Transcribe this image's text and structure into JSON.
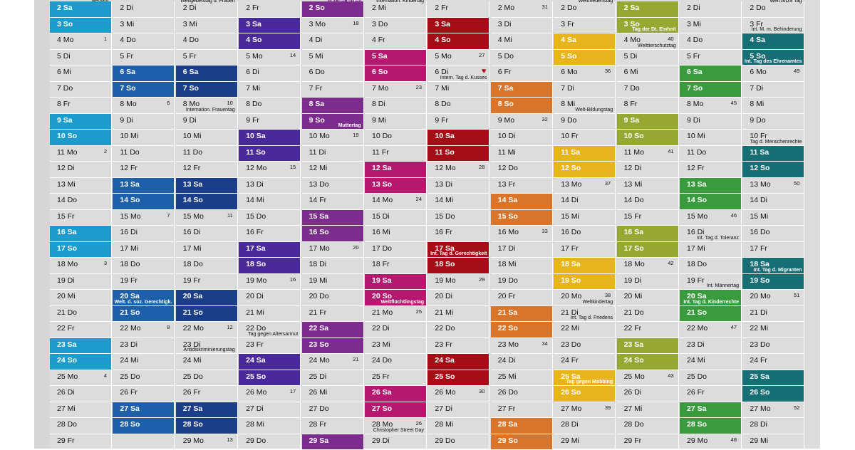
{
  "months": [
    {
      "key": "jan",
      "color": "#1b9ccc",
      "top_note": "Neujahr",
      "cells": [
        {
          "t": "2 Sa",
          "w": true
        },
        {
          "t": "3 So",
          "w": true
        },
        {
          "t": "4 Mo",
          "k": "1"
        },
        {
          "t": "5 Di"
        },
        {
          "t": "6 Mi"
        },
        {
          "t": "7 Do"
        },
        {
          "t": "8 Fr"
        },
        {
          "t": "9 Sa",
          "w": true
        },
        {
          "t": "10 So",
          "w": true
        },
        {
          "t": "11 Mo",
          "k": "2"
        },
        {
          "t": "12 Di"
        },
        {
          "t": "13 Mi"
        },
        {
          "t": "14 Do"
        },
        {
          "t": "15 Fr"
        },
        {
          "t": "16 Sa",
          "w": true
        },
        {
          "t": "17 So",
          "w": true
        },
        {
          "t": "18 Mo",
          "k": "3"
        },
        {
          "t": "19 Di"
        },
        {
          "t": "20 Mi"
        },
        {
          "t": "21 Do"
        },
        {
          "t": "22 Fr"
        },
        {
          "t": "23 Sa",
          "w": true
        },
        {
          "t": "24 So",
          "w": true
        },
        {
          "t": "25 Mo",
          "k": "4"
        },
        {
          "t": "26 Di"
        },
        {
          "t": "27 Mi"
        },
        {
          "t": "28 Do"
        },
        {
          "t": "29 Fr"
        }
      ]
    },
    {
      "key": "feb",
      "color": "#1d5fa8",
      "top_note": "",
      "cells": [
        {
          "t": "2 Di"
        },
        {
          "t": "3 Mi"
        },
        {
          "t": "4 Do"
        },
        {
          "t": "5 Fr"
        },
        {
          "t": "6 Sa",
          "w": true
        },
        {
          "t": "7 So",
          "w": true
        },
        {
          "t": "8 Mo",
          "k": "6"
        },
        {
          "t": "9 Di"
        },
        {
          "t": "10 Mi"
        },
        {
          "t": "11 Do"
        },
        {
          "t": "12 Fr"
        },
        {
          "t": "13 Sa",
          "w": true
        },
        {
          "t": "14 So",
          "w": true
        },
        {
          "t": "15 Mo",
          "k": "7"
        },
        {
          "t": "16 Di"
        },
        {
          "t": "17 Mi"
        },
        {
          "t": "18 Do"
        },
        {
          "t": "19 Fr"
        },
        {
          "t": "20 Sa",
          "w": true,
          "n": "Welt. d. soz. Gerechtigk."
        },
        {
          "t": "21 So",
          "w": true
        },
        {
          "t": "22 Mo",
          "k": "8"
        },
        {
          "t": "23 Di"
        },
        {
          "t": "24 Mi"
        },
        {
          "t": "25 Do"
        },
        {
          "t": "26 Fr"
        },
        {
          "t": "27 Sa",
          "w": true
        },
        {
          "t": "28 So",
          "w": true
        },
        {
          "t": ""
        }
      ]
    },
    {
      "key": "mar",
      "color": "#1a3e8a",
      "top_note": "Weltgebetstag d. Frauen",
      "cells": [
        {
          "t": "2 Di"
        },
        {
          "t": "3 Mi"
        },
        {
          "t": "4 Do"
        },
        {
          "t": "5 Fr"
        },
        {
          "t": "6 Sa",
          "w": true
        },
        {
          "t": "7 So",
          "w": true
        },
        {
          "t": "8 Mo",
          "k": "10",
          "n": "Internation. Frauentag"
        },
        {
          "t": "9 Di"
        },
        {
          "t": "10 Mi"
        },
        {
          "t": "11 Do"
        },
        {
          "t": "12 Fr"
        },
        {
          "t": "13 Sa",
          "w": true
        },
        {
          "t": "14 So",
          "w": true
        },
        {
          "t": "15 Mo",
          "k": "11"
        },
        {
          "t": "16 Di"
        },
        {
          "t": "17 Mi"
        },
        {
          "t": "18 Do"
        },
        {
          "t": "19 Fr"
        },
        {
          "t": "20 Sa",
          "w": true
        },
        {
          "t": "21 So",
          "w": true
        },
        {
          "t": "22 Mo",
          "k": "12"
        },
        {
          "t": "23 Di",
          "n": "Antidiskriminierungstag"
        },
        {
          "t": "24 Mi"
        },
        {
          "t": "25 Do"
        },
        {
          "t": "26 Fr"
        },
        {
          "t": "27 Sa",
          "w": true
        },
        {
          "t": "28 So",
          "w": true
        },
        {
          "t": "29 Mo",
          "k": "13"
        }
      ]
    },
    {
      "key": "apr",
      "color": "#4a2a9a",
      "top_note": "",
      "cells": [
        {
          "t": "2 Fr"
        },
        {
          "t": "3 Sa",
          "w": true
        },
        {
          "t": "4 So",
          "w": true
        },
        {
          "t": "5 Mo",
          "k": "14"
        },
        {
          "t": "6 Di"
        },
        {
          "t": "7 Mi"
        },
        {
          "t": "8 Do"
        },
        {
          "t": "9 Fr"
        },
        {
          "t": "10 Sa",
          "w": true
        },
        {
          "t": "11 So",
          "w": true
        },
        {
          "t": "12 Mo",
          "k": "15"
        },
        {
          "t": "13 Di"
        },
        {
          "t": "14 Mi"
        },
        {
          "t": "15 Do"
        },
        {
          "t": "16 Fr"
        },
        {
          "t": "17 Sa",
          "w": true
        },
        {
          "t": "18 So",
          "w": true
        },
        {
          "t": "19 Mo",
          "k": "16"
        },
        {
          "t": "20 Di"
        },
        {
          "t": "21 Mi"
        },
        {
          "t": "22 Do",
          "n": "Tag gegen Altersarmut"
        },
        {
          "t": "23 Fr"
        },
        {
          "t": "24 Sa",
          "w": true
        },
        {
          "t": "25 So",
          "w": true
        },
        {
          "t": "26 Mo",
          "k": "17"
        },
        {
          "t": "27 Di"
        },
        {
          "t": "28 Mi"
        },
        {
          "t": "29 Do"
        }
      ]
    },
    {
      "key": "may",
      "color": "#7b2c8c",
      "top_note": "Tag der Arbeit",
      "cells": [
        {
          "t": "2 So",
          "w": true
        },
        {
          "t": "3 Mo",
          "k": "18"
        },
        {
          "t": "4 Di"
        },
        {
          "t": "5 Mi"
        },
        {
          "t": "6 Do"
        },
        {
          "t": "7 Fr"
        },
        {
          "t": "8 Sa",
          "w": true
        },
        {
          "t": "9 So",
          "w": true,
          "n": "Muttertag"
        },
        {
          "t": "10 Mo",
          "k": "19"
        },
        {
          "t": "11 Di"
        },
        {
          "t": "12 Mi"
        },
        {
          "t": "13 Do"
        },
        {
          "t": "14 Fr"
        },
        {
          "t": "15 Sa",
          "w": true
        },
        {
          "t": "16 So",
          "w": true
        },
        {
          "t": "17 Mo",
          "k": "20"
        },
        {
          "t": "18 Di"
        },
        {
          "t": "19 Mi"
        },
        {
          "t": "20 Do"
        },
        {
          "t": "21 Fr"
        },
        {
          "t": "22 Sa",
          "w": true
        },
        {
          "t": "23 So",
          "w": true
        },
        {
          "t": "24 Mo",
          "k": "21"
        },
        {
          "t": "25 Di"
        },
        {
          "t": "26 Mi"
        },
        {
          "t": "27 Do"
        },
        {
          "t": "28 Fr"
        },
        {
          "t": "29 Sa",
          "w": true
        }
      ]
    },
    {
      "key": "jun",
      "color": "#b5186e",
      "top_note": "Internation. Kindertag",
      "cells": [
        {
          "t": "2 Mi"
        },
        {
          "t": "3 Do"
        },
        {
          "t": "4 Fr"
        },
        {
          "t": "5 Sa",
          "w": true
        },
        {
          "t": "6 So",
          "w": true
        },
        {
          "t": "7 Mo",
          "k": "23"
        },
        {
          "t": "8 Di"
        },
        {
          "t": "9 Mi"
        },
        {
          "t": "10 Do"
        },
        {
          "t": "11 Fr"
        },
        {
          "t": "12 Sa",
          "w": true
        },
        {
          "t": "13 So",
          "w": true
        },
        {
          "t": "14 Mo",
          "k": "24"
        },
        {
          "t": "15 Di"
        },
        {
          "t": "16 Mi"
        },
        {
          "t": "17 Do"
        },
        {
          "t": "18 Fr"
        },
        {
          "t": "19 Sa",
          "w": true
        },
        {
          "t": "20 So",
          "w": true,
          "n": "Weltflüchtlingstag"
        },
        {
          "t": "21 Mo",
          "k": "25"
        },
        {
          "t": "22 Di"
        },
        {
          "t": "23 Mi"
        },
        {
          "t": "24 Do"
        },
        {
          "t": "25 Fr"
        },
        {
          "t": "26 Sa",
          "w": true
        },
        {
          "t": "27 So",
          "w": true
        },
        {
          "t": "28 Mo",
          "k": "26",
          "n": "Christopher Street Day"
        },
        {
          "t": "29 Di"
        }
      ]
    },
    {
      "key": "jul",
      "color": "#a50d16",
      "top_note": "",
      "cells": [
        {
          "t": "2 Fr"
        },
        {
          "t": "3 Sa",
          "w": true
        },
        {
          "t": "4 So",
          "w": true
        },
        {
          "t": "5 Mo",
          "k": "27"
        },
        {
          "t": "6 Di",
          "h": true,
          "n": "Intern. Tag d. Kusses"
        },
        {
          "t": "7 Mi"
        },
        {
          "t": "8 Do"
        },
        {
          "t": "9 Fr"
        },
        {
          "t": "10 Sa",
          "w": true
        },
        {
          "t": "11 So",
          "w": true
        },
        {
          "t": "12 Mo",
          "k": "28"
        },
        {
          "t": "13 Di"
        },
        {
          "t": "14 Mi"
        },
        {
          "t": "15 Do"
        },
        {
          "t": "16 Fr"
        },
        {
          "t": "17 Sa",
          "w": true,
          "n": "Int. Tag d. Gerechtigkeit"
        },
        {
          "t": "18 So",
          "w": true
        },
        {
          "t": "19 Mo",
          "k": "29"
        },
        {
          "t": "20 Di"
        },
        {
          "t": "21 Mi"
        },
        {
          "t": "22 Do"
        },
        {
          "t": "23 Fr"
        },
        {
          "t": "24 Sa",
          "w": true
        },
        {
          "t": "25 So",
          "w": true
        },
        {
          "t": "26 Mo",
          "k": "30"
        },
        {
          "t": "27 Di"
        },
        {
          "t": "28 Mi"
        },
        {
          "t": "29 Do"
        }
      ]
    },
    {
      "key": "aug",
      "color": "#d9752a",
      "top_note": "",
      "cells": [
        {
          "t": "2 Mo",
          "k": "31"
        },
        {
          "t": "3 Di"
        },
        {
          "t": "4 Mi"
        },
        {
          "t": "5 Do"
        },
        {
          "t": "6 Fr"
        },
        {
          "t": "7 Sa",
          "w": true
        },
        {
          "t": "8 So",
          "w": true
        },
        {
          "t": "9 Mo",
          "k": "32"
        },
        {
          "t": "10 Di"
        },
        {
          "t": "11 Mi"
        },
        {
          "t": "12 Do"
        },
        {
          "t": "13 Fr"
        },
        {
          "t": "14 Sa",
          "w": true
        },
        {
          "t": "15 So",
          "w": true
        },
        {
          "t": "16 Mo",
          "k": "33"
        },
        {
          "t": "17 Di"
        },
        {
          "t": "18 Mi"
        },
        {
          "t": "19 Do"
        },
        {
          "t": "20 Fr"
        },
        {
          "t": "21 Sa",
          "w": true
        },
        {
          "t": "22 So",
          "w": true
        },
        {
          "t": "23 Mo",
          "k": "34"
        },
        {
          "t": "24 Di"
        },
        {
          "t": "25 Mi"
        },
        {
          "t": "26 Do"
        },
        {
          "t": "27 Fr"
        },
        {
          "t": "28 Sa",
          "w": true
        },
        {
          "t": "29 So",
          "w": true
        }
      ]
    },
    {
      "key": "sep",
      "color": "#e8b41c",
      "top_note": "Weltfriedenstag",
      "cells": [
        {
          "t": "2 Do"
        },
        {
          "t": "3 Fr"
        },
        {
          "t": "4 Sa",
          "w": true
        },
        {
          "t": "5 So",
          "w": true
        },
        {
          "t": "6 Mo",
          "k": "36"
        },
        {
          "t": "7 Di"
        },
        {
          "t": "8 Mi",
          "n": "Welt-Bildungstag"
        },
        {
          "t": "9 Do"
        },
        {
          "t": "10 Fr"
        },
        {
          "t": "11 Sa",
          "w": true
        },
        {
          "t": "12 So",
          "w": true
        },
        {
          "t": "13 Mo",
          "k": "37"
        },
        {
          "t": "14 Di"
        },
        {
          "t": "15 Mi"
        },
        {
          "t": "16 Do"
        },
        {
          "t": "17 Fr"
        },
        {
          "t": "18 Sa",
          "w": true
        },
        {
          "t": "19 So",
          "w": true
        },
        {
          "t": "20 Mo",
          "k": "38",
          "n": "Weltkindertag"
        },
        {
          "t": "21 Di",
          "n": "Int. Tag d. Friedens"
        },
        {
          "t": "22 Mi"
        },
        {
          "t": "23 Do"
        },
        {
          "t": "24 Fr"
        },
        {
          "t": "25 Sa",
          "w": true,
          "n": "Tag gegen Mobbing"
        },
        {
          "t": "26 So",
          "w": true
        },
        {
          "t": "27 Mo",
          "k": "39"
        },
        {
          "t": "28 Di"
        },
        {
          "t": "29 Mi"
        }
      ]
    },
    {
      "key": "oct",
      "color": "#97a832",
      "top_note": "",
      "cells": [
        {
          "t": "2 Sa",
          "w": true
        },
        {
          "t": "3 So",
          "w": true,
          "n": "Tag der Dt. Einheit"
        },
        {
          "t": "4 Mo",
          "k": "40",
          "n": "Welttierschutztag"
        },
        {
          "t": "5 Di"
        },
        {
          "t": "6 Mi"
        },
        {
          "t": "7 Do"
        },
        {
          "t": "8 Fr"
        },
        {
          "t": "9 Sa",
          "w": true
        },
        {
          "t": "10 So",
          "w": true
        },
        {
          "t": "11 Mo",
          "k": "41"
        },
        {
          "t": "12 Di"
        },
        {
          "t": "13 Mi"
        },
        {
          "t": "14 Do"
        },
        {
          "t": "15 Fr"
        },
        {
          "t": "16 Sa",
          "w": true
        },
        {
          "t": "17 So",
          "w": true
        },
        {
          "t": "18 Mo",
          "k": "42"
        },
        {
          "t": "19 Di"
        },
        {
          "t": "20 Mi"
        },
        {
          "t": "21 Do"
        },
        {
          "t": "22 Fr"
        },
        {
          "t": "23 Sa",
          "w": true
        },
        {
          "t": "24 So",
          "w": true
        },
        {
          "t": "25 Mo",
          "k": "43"
        },
        {
          "t": "26 Di"
        },
        {
          "t": "27 Mi"
        },
        {
          "t": "28 Do"
        },
        {
          "t": "29 Fr"
        }
      ]
    },
    {
      "key": "nov",
      "color": "#3a9a3e",
      "top_note": "",
      "cells": [
        {
          "t": "2 Di"
        },
        {
          "t": "3 Mi"
        },
        {
          "t": "4 Do"
        },
        {
          "t": "5 Fr"
        },
        {
          "t": "6 Sa",
          "w": true
        },
        {
          "t": "7 So",
          "w": true
        },
        {
          "t": "8 Mo",
          "k": "45"
        },
        {
          "t": "9 Di"
        },
        {
          "t": "10 Mi"
        },
        {
          "t": "11 Do"
        },
        {
          "t": "12 Fr"
        },
        {
          "t": "13 Sa",
          "w": true
        },
        {
          "t": "14 So",
          "w": true
        },
        {
          "t": "15 Mo",
          "k": "46"
        },
        {
          "t": "16 Di",
          "n": "Int. Tag d. Toleranz"
        },
        {
          "t": "17 Mi"
        },
        {
          "t": "18 Do"
        },
        {
          "t": "19 Fr",
          "n": "Int. Männertag"
        },
        {
          "t": "20 Sa",
          "w": true,
          "n": "Int. Tag d. Kinderrechte"
        },
        {
          "t": "21 So",
          "w": true
        },
        {
          "t": "22 Mo",
          "k": "47"
        },
        {
          "t": "23 Di"
        },
        {
          "t": "24 Mi"
        },
        {
          "t": "25 Do"
        },
        {
          "t": "26 Fr"
        },
        {
          "t": "27 Sa",
          "w": true
        },
        {
          "t": "28 So",
          "w": true
        },
        {
          "t": "29 Mo",
          "k": "48"
        }
      ]
    },
    {
      "key": "dec",
      "color": "#156f74",
      "top_note": "Welt AIDS Tag",
      "cells": [
        {
          "t": "2 Do"
        },
        {
          "t": "3 Fr",
          "n": "Int. M. m. Behinderung"
        },
        {
          "t": "4 Sa",
          "w": true
        },
        {
          "t": "5 So",
          "w": true,
          "n": "Int. Tag des Ehrenamtes"
        },
        {
          "t": "6 Mo",
          "k": "49"
        },
        {
          "t": "7 Di"
        },
        {
          "t": "8 Mi"
        },
        {
          "t": "9 Do"
        },
        {
          "t": "10 Fr",
          "n": "Tag d. Menschenrechte"
        },
        {
          "t": "11 Sa",
          "w": true
        },
        {
          "t": "12 So",
          "w": true
        },
        {
          "t": "13 Mo",
          "k": "50"
        },
        {
          "t": "14 Di"
        },
        {
          "t": "15 Mi"
        },
        {
          "t": "16 Do"
        },
        {
          "t": "17 Fr"
        },
        {
          "t": "18 Sa",
          "w": true,
          "n": "Int. Tag d. Migranten"
        },
        {
          "t": "19 So",
          "w": true
        },
        {
          "t": "20 Mo",
          "k": "51"
        },
        {
          "t": "21 Di"
        },
        {
          "t": "22 Mi"
        },
        {
          "t": "23 Do"
        },
        {
          "t": "24 Fr"
        },
        {
          "t": "25 Sa",
          "w": true
        },
        {
          "t": "26 So",
          "w": true
        },
        {
          "t": "27 Mo",
          "k": "52"
        },
        {
          "t": "28 Di"
        },
        {
          "t": "29 Mi"
        }
      ]
    }
  ]
}
